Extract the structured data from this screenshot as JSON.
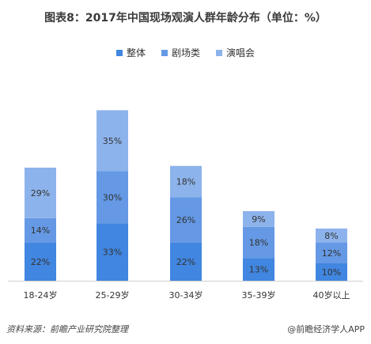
{
  "title": "图表8：2017年中国现场观演人群年龄分布（单位：%）",
  "footer": {
    "source": "资料来源：前瞻产业研究院整理",
    "brand": "@前瞻经济学人APP"
  },
  "colors": {
    "series0": "#4186e0",
    "series1": "#6599e5",
    "series2": "#8db3ec"
  },
  "chart_data": {
    "type": "bar",
    "stacked": true,
    "title": "图表8：2017年中国现场观演人群年龄分布（单位：%）",
    "categories": [
      "18-24岁",
      "25-29岁",
      "30-34岁",
      "35-39岁",
      "40岁以上"
    ],
    "series": [
      {
        "name": "整体",
        "values": [
          22,
          33,
          22,
          13,
          10
        ],
        "labels": [
          "22%",
          "33%",
          "22%",
          "13%",
          "10%"
        ]
      },
      {
        "name": "剧场类",
        "values": [
          14,
          30,
          26,
          18,
          12
        ],
        "labels": [
          "14%",
          "30%",
          "26%",
          "18%",
          "12%"
        ]
      },
      {
        "name": "演唱会",
        "values": [
          29,
          35,
          18,
          9,
          8
        ],
        "labels": [
          "29%",
          "35%",
          "18%",
          "9%",
          "8%"
        ]
      }
    ],
    "legend_position": "top-center",
    "grid": false,
    "y_axis_visible": false
  }
}
